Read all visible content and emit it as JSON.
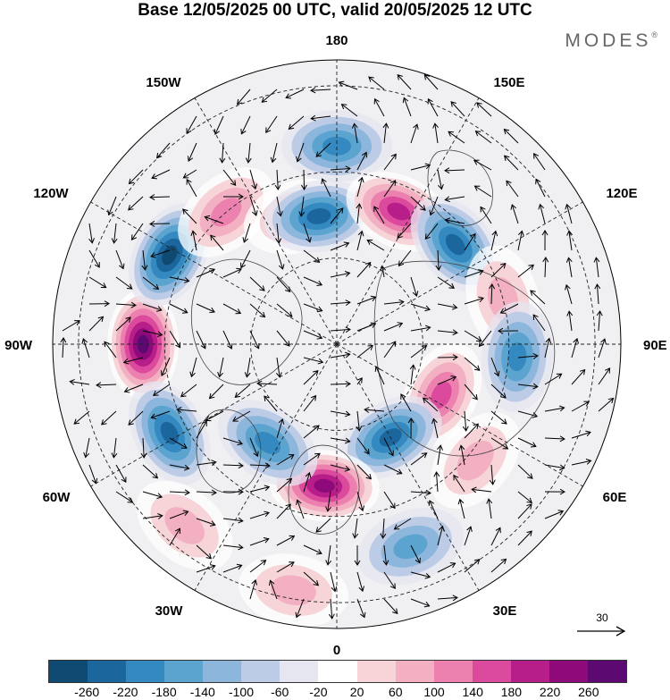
{
  "header": {
    "title": "Base 12/05/2025 00 UTC, valid 20/05/2025 12 UTC",
    "brand": "MODES",
    "brand_mark": "®"
  },
  "map": {
    "projection": "north-polar-stereographic",
    "longitude_labels": {
      "top": "180",
      "bottom": "0",
      "left": "90W",
      "right": "90E",
      "upper_left_1": "150W",
      "upper_left_2": "120W",
      "upper_right_1": "150E",
      "upper_right_2": "120E",
      "lower_left_1": "60W",
      "lower_left_2": "30W",
      "lower_right_1": "60E",
      "lower_right_2": "30E"
    },
    "wind_reference_label": "30",
    "anomaly_centers": [
      {
        "lon": -90,
        "colat": 45,
        "value": 260
      },
      {
        "lon": -118,
        "colat": 44,
        "value": -220
      },
      {
        "lon": -62,
        "colat": 44,
        "value": -180
      },
      {
        "lon": -140,
        "colat": 40,
        "value": 100
      },
      {
        "lon": -163,
        "colat": 31,
        "value": 60
      },
      {
        "lon": -172,
        "colat": 30,
        "value": -180
      },
      {
        "lon": 180,
        "colat": 46,
        "value": -140
      },
      {
        "lon": 155,
        "colat": 34,
        "value": 200
      },
      {
        "lon": 130,
        "colat": 36,
        "value": -180
      },
      {
        "lon": 105,
        "colat": 40,
        "value": 60
      },
      {
        "lon": 86,
        "colat": 42,
        "value": -140
      },
      {
        "lon": 64,
        "colat": 27,
        "value": 140
      },
      {
        "lon": 50,
        "colat": 42,
        "value": 60
      },
      {
        "lon": 30,
        "colat": 25,
        "value": -180
      },
      {
        "lon": 20,
        "colat": 50,
        "value": -100
      },
      {
        "lon": -5,
        "colat": 33,
        "value": 220
      },
      {
        "lon": -35,
        "colat": 28,
        "value": -140
      },
      {
        "lon": -40,
        "colat": 55,
        "value": 60
      },
      {
        "lon": -10,
        "colat": 58,
        "value": 60
      }
    ]
  },
  "colorbar": {
    "colors": [
      "#0f4a73",
      "#1c669e",
      "#3389c0",
      "#5aa4cf",
      "#8db6dc",
      "#bccce6",
      "#e6e6f0",
      "#ffffff",
      "#f6d4d8",
      "#f2b0c2",
      "#ec80ae",
      "#dc4a9e",
      "#b81e8a",
      "#8e0a7a",
      "#5c0a72"
    ],
    "ticks": [
      "-260",
      "-220",
      "-180",
      "-140",
      "-100",
      "-60",
      "-20",
      "20",
      "60",
      "100",
      "140",
      "180",
      "220",
      "260"
    ]
  }
}
